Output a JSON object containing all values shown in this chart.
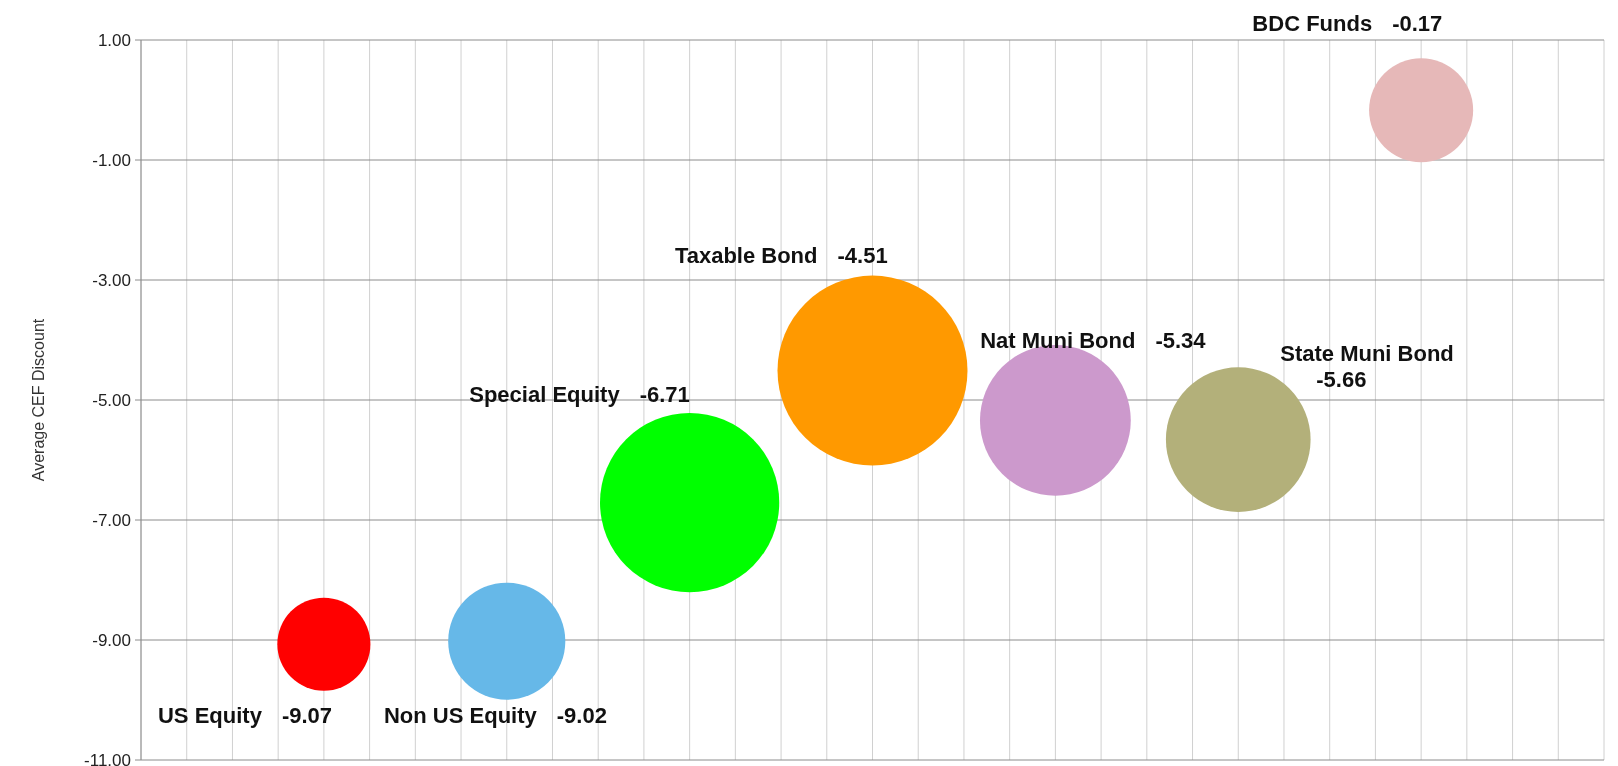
{
  "chart_data": {
    "type": "bubble",
    "ylabel": "Average CEF Discount",
    "categories": [
      null,
      null,
      null,
      null,
      null,
      null,
      null
    ],
    "ylim": [
      -11,
      1
    ],
    "yticks": [
      {
        "value": 1,
        "label": "1.00"
      },
      {
        "value": -1,
        "label": "-1.00"
      },
      {
        "value": -3,
        "label": "-3.00"
      },
      {
        "value": -5,
        "label": "-5.00"
      },
      {
        "value": -7,
        "label": "-7.00"
      },
      {
        "value": -9,
        "label": "-9.00"
      },
      {
        "value": -11,
        "label": "-11.00"
      }
    ],
    "grid": true,
    "data_labels": true,
    "series": [
      {
        "name": "US Equity",
        "color": "#ff0000",
        "values": [
          -9.07,
          null,
          null,
          null,
          null,
          null,
          null
        ],
        "sizes": [
          0.24,
          null,
          null,
          null,
          null,
          null,
          null
        ]
      },
      {
        "name": "Non US Equity",
        "color": "#66b8e8",
        "values": [
          null,
          -9.02,
          null,
          null,
          null,
          null,
          null
        ],
        "sizes": [
          null,
          0.38,
          null,
          null,
          null,
          null,
          null
        ]
      },
      {
        "name": "Special Equity",
        "color": "#00ff00",
        "values": [
          null,
          null,
          -6.71,
          null,
          null,
          null,
          null
        ],
        "sizes": [
          null,
          null,
          0.89,
          null,
          null,
          null,
          null
        ]
      },
      {
        "name": "Taxable Bond",
        "color": "#ff9900",
        "values": [
          null,
          null,
          null,
          -4.51,
          null,
          null,
          null
        ],
        "sizes": [
          null,
          null,
          null,
          1,
          null,
          null,
          null
        ]
      },
      {
        "name": "Nat Muni Bond",
        "color": "#cc99cc",
        "values": [
          null,
          null,
          null,
          null,
          -5.34,
          null,
          null
        ],
        "sizes": [
          null,
          null,
          null,
          null,
          0.63,
          null,
          null
        ]
      },
      {
        "name": "State Muni Bond",
        "color": "#b3b07a",
        "values": [
          null,
          null,
          null,
          null,
          null,
          -5.66,
          null
        ],
        "sizes": [
          null,
          null,
          null,
          null,
          null,
          0.58,
          null
        ]
      },
      {
        "name": "BDC Funds",
        "color": "#e6b8b8",
        "values": [
          null,
          null,
          null,
          null,
          null,
          null,
          -0.17
        ],
        "sizes": [
          null,
          null,
          null,
          null,
          null,
          null,
          0.3
        ]
      }
    ]
  }
}
